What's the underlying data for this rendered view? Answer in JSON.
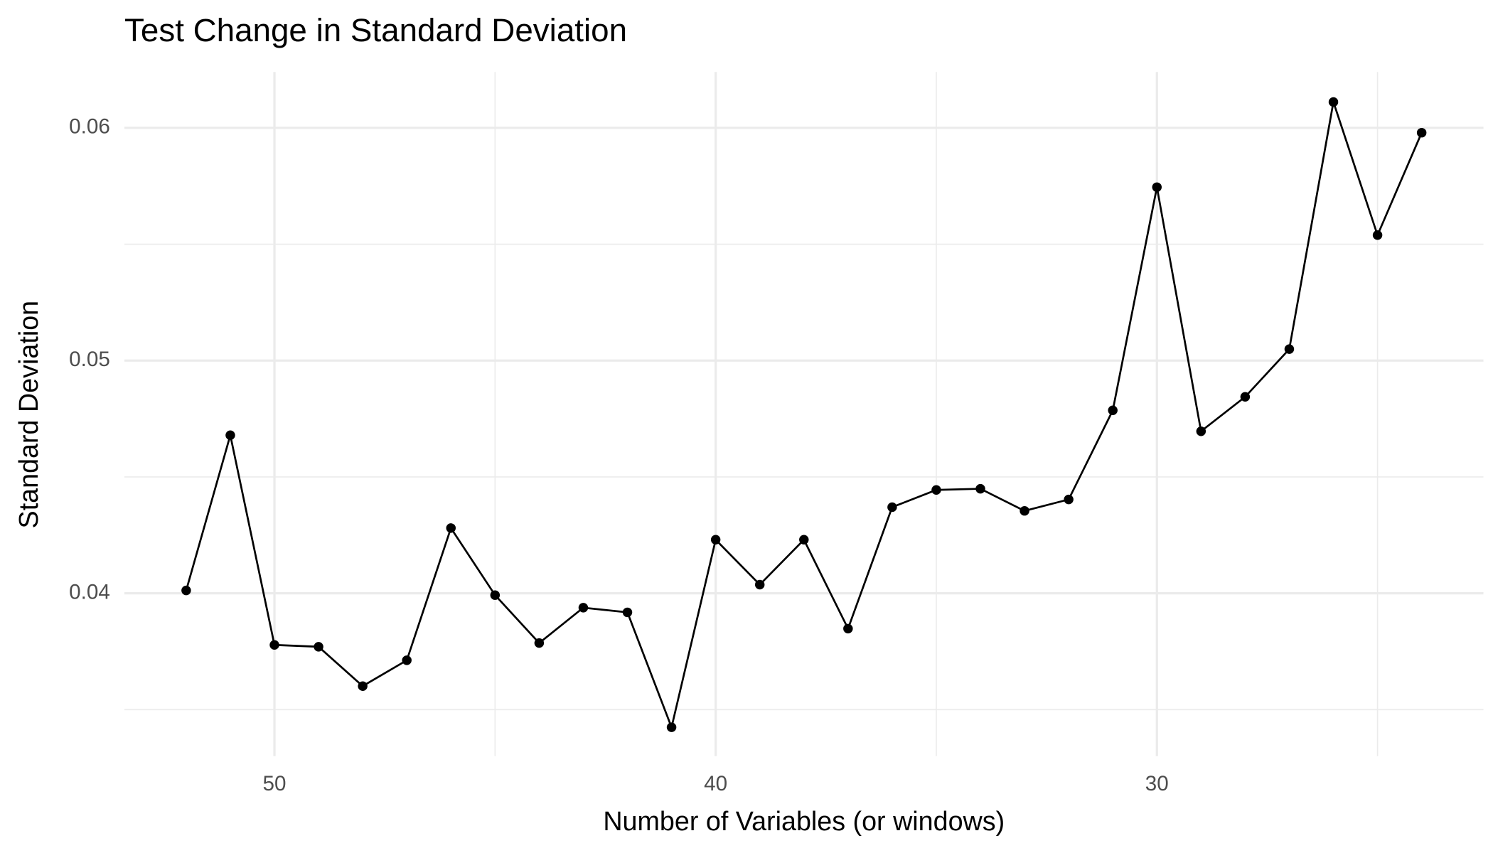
{
  "chart_data": {
    "type": "line",
    "title": "Test Change in Standard Deviation",
    "x_label": "Number of Variables (or windows)",
    "y_label": "Standard Deviation",
    "x": [
      52,
      51,
      50,
      49,
      48,
      47,
      46,
      45,
      44,
      43,
      42,
      41,
      40,
      39,
      38,
      37,
      36,
      35,
      34,
      33,
      32,
      31,
      30,
      29,
      28,
      27,
      26,
      25,
      24
    ],
    "values": [
      0.04012,
      0.04679,
      0.03778,
      0.0377,
      0.03601,
      0.03712,
      0.0428,
      0.03992,
      0.03786,
      0.03938,
      0.03918,
      0.03424,
      0.0423,
      0.04037,
      0.0423,
      0.03848,
      0.0437,
      0.04444,
      0.04449,
      0.04354,
      0.04403,
      0.04786,
      0.05745,
      0.04696,
      0.04844,
      0.05049,
      0.06111,
      0.05539,
      0.05979
    ],
    "color": "#000000",
    "xlim": [
      53.4,
      22.6
    ],
    "ylim": [
      0.033,
      0.0624
    ],
    "xticks": [
      50,
      40,
      30
    ],
    "yticks": [
      0.04,
      0.05,
      0.06
    ],
    "xminor": [
      45,
      35,
      25
    ],
    "yminor": [
      0.035,
      0.045,
      0.055
    ],
    "grid": true
  }
}
